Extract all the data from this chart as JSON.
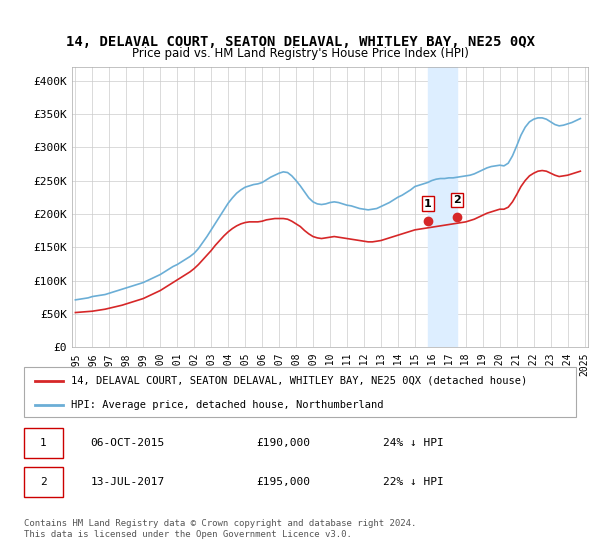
{
  "title": "14, DELAVAL COURT, SEATON DELAVAL, WHITLEY BAY, NE25 0QX",
  "subtitle": "Price paid vs. HM Land Registry's House Price Index (HPI)",
  "xlabel": "",
  "ylabel": "",
  "ylim": [
    0,
    420000
  ],
  "yticks": [
    0,
    50000,
    100000,
    150000,
    200000,
    250000,
    300000,
    350000,
    400000
  ],
  "ytick_labels": [
    "£0",
    "£50K",
    "£100K",
    "£150K",
    "£200K",
    "£250K",
    "£300K",
    "£350K",
    "£400K"
  ],
  "background_color": "#ffffff",
  "grid_color": "#cccccc",
  "hpi_color": "#6baed6",
  "price_color": "#d62728",
  "marker_color": "#d62728",
  "shade_color": "#ddeeff",
  "legend_label_price": "14, DELAVAL COURT, SEATON DELAVAL, WHITLEY BAY, NE25 0QX (detached house)",
  "legend_label_hpi": "HPI: Average price, detached house, Northumberland",
  "transaction1_date": "06-OCT-2015",
  "transaction1_price": "£190,000",
  "transaction1_note": "24% ↓ HPI",
  "transaction2_date": "13-JUL-2017",
  "transaction2_price": "£195,000",
  "transaction2_note": "22% ↓ HPI",
  "footnote": "Contains HM Land Registry data © Crown copyright and database right 2024.\nThis data is licensed under the Open Government Licence v3.0.",
  "hpi_years": [
    1995.0,
    1995.25,
    1995.5,
    1995.75,
    1996.0,
    1996.25,
    1996.5,
    1996.75,
    1997.0,
    1997.25,
    1997.5,
    1997.75,
    1998.0,
    1998.25,
    1998.5,
    1998.75,
    1999.0,
    1999.25,
    1999.5,
    1999.75,
    2000.0,
    2000.25,
    2000.5,
    2000.75,
    2001.0,
    2001.25,
    2001.5,
    2001.75,
    2002.0,
    2002.25,
    2002.5,
    2002.75,
    2003.0,
    2003.25,
    2003.5,
    2003.75,
    2004.0,
    2004.25,
    2004.5,
    2004.75,
    2005.0,
    2005.25,
    2005.5,
    2005.75,
    2006.0,
    2006.25,
    2006.5,
    2006.75,
    2007.0,
    2007.25,
    2007.5,
    2007.75,
    2008.0,
    2008.25,
    2008.5,
    2008.75,
    2009.0,
    2009.25,
    2009.5,
    2009.75,
    2010.0,
    2010.25,
    2010.5,
    2010.75,
    2011.0,
    2011.25,
    2011.5,
    2011.75,
    2012.0,
    2012.25,
    2012.5,
    2012.75,
    2013.0,
    2013.25,
    2013.5,
    2013.75,
    2014.0,
    2014.25,
    2014.5,
    2014.75,
    2015.0,
    2015.25,
    2015.5,
    2015.75,
    2016.0,
    2016.25,
    2016.5,
    2016.75,
    2017.0,
    2017.25,
    2017.5,
    2017.75,
    2018.0,
    2018.25,
    2018.5,
    2018.75,
    2019.0,
    2019.25,
    2019.5,
    2019.75,
    2020.0,
    2020.25,
    2020.5,
    2020.75,
    2021.0,
    2021.25,
    2021.5,
    2021.75,
    2022.0,
    2022.25,
    2022.5,
    2022.75,
    2023.0,
    2023.25,
    2023.5,
    2023.75,
    2024.0,
    2024.25,
    2024.5,
    2024.75
  ],
  "hpi_values": [
    71000,
    72000,
    73000,
    74000,
    76000,
    77000,
    78000,
    79000,
    81000,
    83000,
    85000,
    87000,
    89000,
    91000,
    93000,
    95000,
    97000,
    100000,
    103000,
    106000,
    109000,
    113000,
    117000,
    121000,
    124000,
    128000,
    132000,
    136000,
    141000,
    148000,
    157000,
    166000,
    176000,
    186000,
    196000,
    206000,
    216000,
    224000,
    231000,
    236000,
    240000,
    242000,
    244000,
    245000,
    247000,
    251000,
    255000,
    258000,
    261000,
    263000,
    262000,
    257000,
    250000,
    242000,
    233000,
    224000,
    218000,
    215000,
    214000,
    215000,
    217000,
    218000,
    217000,
    215000,
    213000,
    212000,
    210000,
    208000,
    207000,
    206000,
    207000,
    208000,
    211000,
    214000,
    217000,
    221000,
    225000,
    228000,
    232000,
    236000,
    241000,
    243000,
    245000,
    247000,
    250000,
    252000,
    253000,
    253000,
    254000,
    254000,
    255000,
    256000,
    257000,
    258000,
    260000,
    263000,
    266000,
    269000,
    271000,
    272000,
    273000,
    272000,
    276000,
    287000,
    302000,
    318000,
    330000,
    338000,
    342000,
    344000,
    344000,
    342000,
    338000,
    334000,
    332000,
    333000,
    335000,
    337000,
    340000,
    343000
  ],
  "price_years": [
    1995.0,
    1995.25,
    1995.5,
    1995.75,
    1996.0,
    1996.25,
    1996.5,
    1996.75,
    1997.0,
    1997.25,
    1997.5,
    1997.75,
    1998.0,
    1998.25,
    1998.5,
    1998.75,
    1999.0,
    1999.25,
    1999.5,
    1999.75,
    2000.0,
    2000.25,
    2000.5,
    2000.75,
    2001.0,
    2001.25,
    2001.5,
    2001.75,
    2002.0,
    2002.25,
    2002.5,
    2002.75,
    2003.0,
    2003.25,
    2003.5,
    2003.75,
    2004.0,
    2004.25,
    2004.5,
    2004.75,
    2005.0,
    2005.25,
    2005.5,
    2005.75,
    2006.0,
    2006.25,
    2006.5,
    2006.75,
    2007.0,
    2007.25,
    2007.5,
    2007.75,
    2008.0,
    2008.25,
    2008.5,
    2008.75,
    2009.0,
    2009.25,
    2009.5,
    2009.75,
    2010.0,
    2010.25,
    2010.5,
    2010.75,
    2011.0,
    2011.25,
    2011.5,
    2011.75,
    2012.0,
    2012.25,
    2012.5,
    2012.75,
    2013.0,
    2013.25,
    2013.5,
    2013.75,
    2014.0,
    2014.25,
    2014.5,
    2014.75,
    2015.0,
    2015.25,
    2015.5,
    2015.75,
    2016.0,
    2016.25,
    2016.5,
    2016.75,
    2017.0,
    2017.25,
    2017.5,
    2017.75,
    2018.0,
    2018.25,
    2018.5,
    2018.75,
    2019.0,
    2019.25,
    2019.5,
    2019.75,
    2020.0,
    2020.25,
    2020.5,
    2020.75,
    2021.0,
    2021.25,
    2021.5,
    2021.75,
    2022.0,
    2022.25,
    2022.5,
    2022.75,
    2023.0,
    2023.25,
    2023.5,
    2023.75,
    2024.0,
    2024.25,
    2024.5,
    2024.75
  ],
  "price_values": [
    52000,
    52500,
    53000,
    53500,
    54000,
    55000,
    56000,
    57000,
    58500,
    60000,
    61500,
    63000,
    65000,
    67000,
    69000,
    71000,
    73000,
    76000,
    79000,
    82000,
    85000,
    89000,
    93000,
    97000,
    101000,
    105000,
    109000,
    113000,
    118000,
    124000,
    131000,
    138000,
    145000,
    153000,
    160000,
    167000,
    173000,
    178000,
    182000,
    185000,
    187000,
    188000,
    188000,
    188000,
    189000,
    191000,
    192000,
    193000,
    193000,
    193000,
    192000,
    189000,
    185000,
    181000,
    175000,
    170000,
    166000,
    164000,
    163000,
    164000,
    165000,
    166000,
    165000,
    164000,
    163000,
    162000,
    161000,
    160000,
    159000,
    158000,
    158000,
    159000,
    160000,
    162000,
    164000,
    166000,
    168000,
    170000,
    172000,
    174000,
    176000,
    177000,
    178000,
    179000,
    180000,
    181000,
    182000,
    183000,
    184000,
    185000,
    186000,
    187000,
    188000,
    190000,
    192000,
    195000,
    198000,
    201000,
    203000,
    205000,
    207000,
    207000,
    210000,
    218000,
    229000,
    241000,
    250000,
    257000,
    261000,
    264000,
    265000,
    264000,
    261000,
    258000,
    256000,
    257000,
    258000,
    260000,
    262000,
    264000
  ],
  "transaction1_x": 2015.75,
  "transaction1_y": 190000,
  "transaction2_x": 2017.5,
  "transaction2_y": 195000,
  "shade_x1": 2015.75,
  "shade_x2": 2017.5,
  "xtick_years": [
    1995,
    1996,
    1997,
    1998,
    1999,
    2000,
    2001,
    2002,
    2003,
    2004,
    2005,
    2006,
    2007,
    2008,
    2009,
    2010,
    2011,
    2012,
    2013,
    2014,
    2015,
    2016,
    2017,
    2018,
    2019,
    2020,
    2021,
    2022,
    2023,
    2024,
    2025
  ]
}
